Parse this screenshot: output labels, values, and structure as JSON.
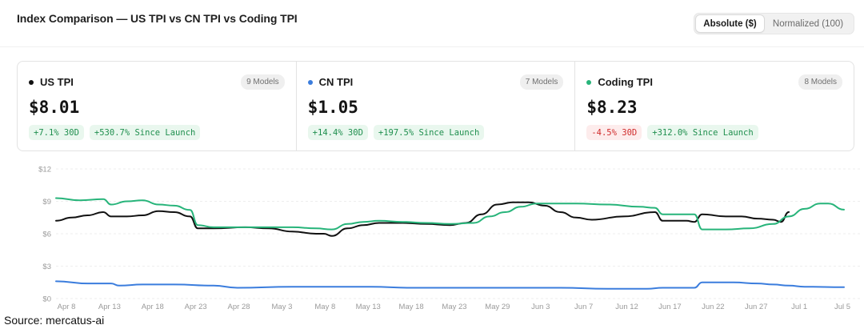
{
  "header": {
    "title": "Index Comparison — US TPI vs CN TPI vs Coding TPI",
    "toggle": {
      "options": [
        "Absolute ($)",
        "Normalized (100)"
      ],
      "selected": "Absolute ($)"
    }
  },
  "cards": [
    {
      "name": "US TPI",
      "color": "#111111",
      "models": "9 Models",
      "price": "$8.01",
      "pills": [
        {
          "text": "+7.1% 30D",
          "tone": "pos"
        },
        {
          "text": "+530.7% Since Launch",
          "tone": "pos"
        }
      ]
    },
    {
      "name": "CN TPI",
      "color": "#3b7ddd",
      "models": "7 Models",
      "price": "$1.05",
      "pills": [
        {
          "text": "+14.4% 30D",
          "tone": "pos"
        },
        {
          "text": "+197.5% Since Launch",
          "tone": "pos"
        }
      ]
    },
    {
      "name": "Coding TPI",
      "color": "#27b47a",
      "models": "8 Models",
      "price": "$8.23",
      "pills": [
        {
          "text": "-4.5% 30D",
          "tone": "neg"
        },
        {
          "text": "+312.0% Since Launch",
          "tone": "pos"
        }
      ]
    }
  ],
  "chart_data": {
    "type": "line",
    "ylim": [
      0,
      12
    ],
    "yticks": [
      "$0",
      "$3",
      "$6",
      "$9",
      "$12"
    ],
    "xticks": [
      "Apr 8",
      "Apr 13",
      "Apr 18",
      "Apr 23",
      "Apr 28",
      "May 3",
      "May 8",
      "May 13",
      "May 18",
      "May 23",
      "May 29",
      "Jun 3",
      "Jun 7",
      "Jun 12",
      "Jun 17",
      "Jun 22",
      "Jun 27",
      "Jul 1",
      "Jul 5"
    ],
    "x_start": "2025-04-06",
    "days": 90,
    "series": [
      {
        "name": "US TPI",
        "color": "#111111",
        "points": [
          [
            0,
            7.2
          ],
          [
            2,
            7.5
          ],
          [
            4,
            7.7
          ],
          [
            6,
            8.0
          ],
          [
            7,
            7.6
          ],
          [
            9,
            7.6
          ],
          [
            11,
            7.7
          ],
          [
            13,
            8.1
          ],
          [
            15,
            8.0
          ],
          [
            17,
            7.6
          ],
          [
            18,
            6.5
          ],
          [
            20,
            6.5
          ],
          [
            24,
            6.6
          ],
          [
            27,
            6.5
          ],
          [
            30,
            6.2
          ],
          [
            33,
            6.0
          ],
          [
            34,
            6.0
          ],
          [
            35,
            5.8
          ],
          [
            37,
            6.5
          ],
          [
            39,
            6.8
          ],
          [
            41,
            7.0
          ],
          [
            44,
            7.0
          ],
          [
            47,
            6.9
          ],
          [
            50,
            6.8
          ],
          [
            52,
            7.0
          ],
          [
            54,
            7.8
          ],
          [
            56,
            8.7
          ],
          [
            58,
            8.9
          ],
          [
            60,
            8.9
          ],
          [
            62,
            8.6
          ],
          [
            64,
            8.0
          ],
          [
            66,
            7.5
          ],
          [
            68,
            7.3
          ],
          [
            72,
            7.6
          ],
          [
            76,
            8.0
          ],
          [
            77,
            7.2
          ],
          [
            80,
            7.2
          ],
          [
            81,
            7.1
          ],
          [
            82,
            7.8
          ],
          [
            85,
            7.6
          ],
          [
            87,
            7.6
          ],
          [
            89,
            7.4
          ],
          [
            91,
            7.3
          ],
          [
            92,
            7.1
          ],
          [
            93,
            8.01
          ]
        ]
      },
      {
        "name": "CN TPI",
        "color": "#3b7ddd",
        "points": [
          [
            0,
            1.6
          ],
          [
            4,
            1.4
          ],
          [
            7,
            1.4
          ],
          [
            8,
            1.2
          ],
          [
            11,
            1.3
          ],
          [
            13,
            1.3
          ],
          [
            15,
            1.3
          ],
          [
            20,
            1.2
          ],
          [
            23,
            1.0
          ],
          [
            30,
            1.1
          ],
          [
            40,
            1.1
          ],
          [
            45,
            1.0
          ],
          [
            52,
            1.0
          ],
          [
            58,
            1.0
          ],
          [
            64,
            1.0
          ],
          [
            70,
            0.9
          ],
          [
            75,
            0.9
          ],
          [
            77,
            1.0
          ],
          [
            81,
            1.0
          ],
          [
            82,
            1.5
          ],
          [
            86,
            1.5
          ],
          [
            89,
            1.4
          ],
          [
            91,
            1.3
          ],
          [
            93,
            1.2
          ],
          [
            95,
            1.1
          ],
          [
            100,
            1.05
          ]
        ]
      },
      {
        "name": "Coding TPI",
        "color": "#27b47a",
        "points": [
          [
            0,
            9.3
          ],
          [
            3,
            9.1
          ],
          [
            6,
            9.2
          ],
          [
            7,
            8.7
          ],
          [
            9,
            9.0
          ],
          [
            11,
            9.1
          ],
          [
            13,
            8.7
          ],
          [
            15,
            8.6
          ],
          [
            17,
            8.2
          ],
          [
            18,
            6.8
          ],
          [
            20,
            6.6
          ],
          [
            24,
            6.6
          ],
          [
            27,
            6.6
          ],
          [
            30,
            6.6
          ],
          [
            33,
            6.5
          ],
          [
            35,
            6.4
          ],
          [
            37,
            6.9
          ],
          [
            39,
            7.1
          ],
          [
            41,
            7.2
          ],
          [
            44,
            7.1
          ],
          [
            47,
            7.0
          ],
          [
            50,
            6.9
          ],
          [
            53,
            7.0
          ],
          [
            55,
            7.6
          ],
          [
            57,
            8.0
          ],
          [
            59,
            8.5
          ],
          [
            61,
            8.8
          ],
          [
            63,
            8.8
          ],
          [
            66,
            8.8
          ],
          [
            70,
            8.7
          ],
          [
            74,
            8.5
          ],
          [
            76,
            8.4
          ],
          [
            77,
            7.8
          ],
          [
            81,
            7.8
          ],
          [
            82,
            6.4
          ],
          [
            85,
            6.4
          ],
          [
            88,
            6.5
          ],
          [
            91,
            6.9
          ],
          [
            93,
            7.6
          ],
          [
            95,
            8.3
          ],
          [
            97,
            8.8
          ],
          [
            98,
            8.8
          ],
          [
            100,
            8.23
          ]
        ]
      }
    ]
  },
  "source": "Source: mercatus-ai"
}
